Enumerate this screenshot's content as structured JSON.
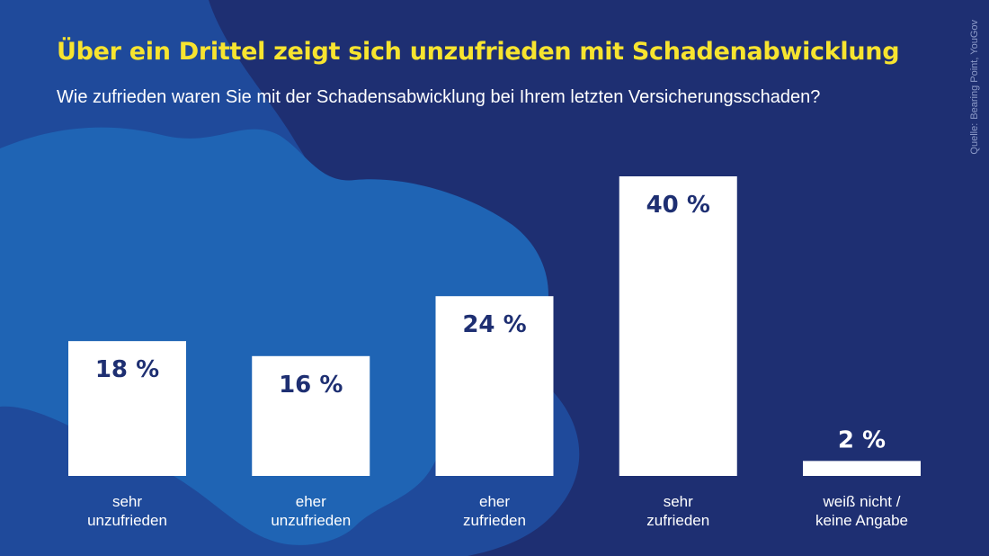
{
  "title": "Über ein Drittel zeigt sich unzufrieden mit Schadenabwicklung",
  "subtitle": "Wie zufrieden waren Sie mit der Schadensabwicklung bei Ihrem letzten Versicherungsschaden?",
  "source": {
    "label": "Quelle:",
    "text": "Bearing Point, YouGov"
  },
  "colors": {
    "background": "#1e2f72",
    "blob_dark": "#1f4a9b",
    "blob_light": "#1f64b4",
    "title": "#f7e42f",
    "bar": "#ffffff",
    "bar_label": "#1e2f72",
    "text": "#ffffff"
  },
  "chart_data": {
    "type": "bar",
    "categories": [
      [
        "sehr",
        "unzufrieden"
      ],
      [
        "eher",
        "unzufrieden"
      ],
      [
        "eher",
        "zufrieden"
      ],
      [
        "sehr",
        "zufrieden"
      ],
      [
        "weiß nicht /",
        "keine Angabe"
      ]
    ],
    "values": [
      18,
      16,
      24,
      40,
      2
    ],
    "value_labels": [
      "18 %",
      "16 %",
      "24 %",
      "40 %",
      "2 %"
    ],
    "unit": "%",
    "ylim": [
      0,
      40
    ],
    "grid": false,
    "legend": "none"
  }
}
